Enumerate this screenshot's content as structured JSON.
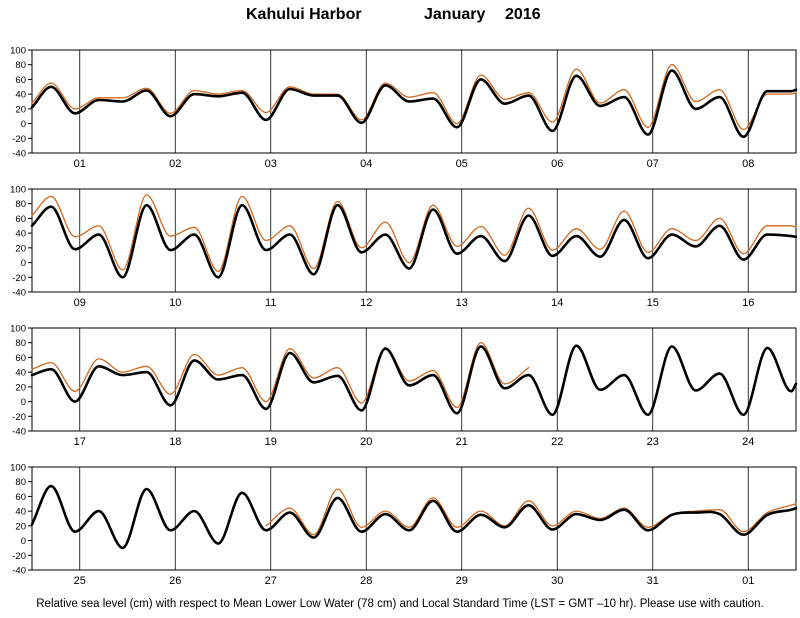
{
  "title": {
    "station": "Kahului Harbor",
    "month": "January",
    "year": "2016"
  },
  "footer": "Relative sea level (cm) with respect to Mean Lower Low Water (78 cm) and Local Standard Time (LST = GMT –10 hr). Please use with caution.",
  "colors": {
    "predicted": "#000000",
    "observed": "#d2691e",
    "grid": "#000000",
    "background": "#ffffff"
  },
  "chart_data": {
    "type": "line",
    "xlabel": "",
    "ylabel": "",
    "ylim": [
      -40,
      100
    ],
    "yticks": [
      -40,
      -20,
      0,
      20,
      40,
      60,
      80,
      100
    ],
    "grid": "vertical day separators",
    "series_styles": [
      {
        "key": "predicted",
        "color": "#000000",
        "weight": "thick"
      },
      {
        "key": "observed",
        "color": "#d2691e",
        "weight": "thin"
      }
    ],
    "panels": [
      {
        "days": [
          "01",
          "02",
          "03",
          "04",
          "05",
          "06",
          "07",
          "08"
        ],
        "predicted": {
          "x": [
            0,
            0.2,
            0.45,
            0.7,
            0.95,
            1.2,
            1.45,
            1.7,
            1.95,
            2.2,
            2.45,
            2.7,
            2.95,
            3.2,
            3.45,
            3.7,
            3.95,
            4.2,
            4.45,
            4.7,
            4.95,
            5.2,
            5.45,
            5.7,
            5.95,
            6.2,
            6.45,
            6.7,
            6.95,
            7.2,
            7.45,
            7.7,
            7.95,
            8.0
          ],
          "y": [
            22,
            50,
            14,
            32,
            30,
            45,
            10,
            40,
            37,
            42,
            5,
            47,
            38,
            38,
            1,
            52,
            30,
            34,
            -5,
            60,
            27,
            38,
            -10,
            65,
            24,
            36,
            -15,
            72,
            20,
            36,
            -18,
            44,
            44,
            46
          ]
        },
        "observed": {
          "x": [
            0,
            0.2,
            0.45,
            0.7,
            0.95,
            1.2,
            1.45,
            1.7,
            1.95,
            2.2,
            2.45,
            2.7,
            2.95,
            3.2,
            3.45,
            3.7,
            3.95,
            4.2,
            4.45,
            4.7,
            4.95,
            5.2,
            5.45,
            5.7,
            5.95,
            6.2,
            6.45,
            6.7,
            6.95,
            7.2,
            7.45,
            7.7,
            7.95,
            8.0
          ],
          "y": [
            28,
            55,
            20,
            35,
            35,
            48,
            14,
            45,
            40,
            45,
            15,
            50,
            40,
            40,
            5,
            55,
            36,
            42,
            0,
            66,
            33,
            42,
            2,
            74,
            28,
            46,
            -5,
            80,
            30,
            46,
            -8,
            40,
            40,
            42
          ]
        }
      },
      {
        "days": [
          "09",
          "10",
          "11",
          "12",
          "13",
          "14",
          "15",
          "16"
        ],
        "predicted": {
          "x": [
            0,
            0.2,
            0.45,
            0.7,
            0.95,
            1.2,
            1.45,
            1.7,
            1.95,
            2.2,
            2.45,
            2.7,
            2.95,
            3.2,
            3.45,
            3.7,
            3.95,
            4.2,
            4.45,
            4.7,
            4.95,
            5.2,
            5.45,
            5.7,
            5.95,
            6.2,
            6.45,
            6.7,
            6.95,
            7.2,
            7.45,
            7.7,
            7.95,
            8.0
          ],
          "y": [
            50,
            76,
            18,
            38,
            -20,
            78,
            17,
            38,
            -20,
            78,
            17,
            38,
            -16,
            78,
            14,
            38,
            -8,
            72,
            12,
            36,
            2,
            64,
            9,
            36,
            8,
            58,
            6,
            38,
            22,
            50,
            4,
            38,
            36,
            35
          ]
        },
        "observed": {
          "x": [
            0,
            0.2,
            0.45,
            0.7,
            0.95,
            1.2,
            1.45,
            1.7,
            1.95,
            2.2,
            2.45,
            2.7,
            2.95,
            3.2,
            3.45,
            3.7,
            3.95,
            4.2,
            4.45,
            4.7,
            4.95,
            5.2,
            5.45,
            5.7,
            5.95,
            6.2,
            6.45,
            6.7,
            6.95,
            7.2,
            7.45,
            7.7,
            7.95,
            8.0
          ],
          "y": [
            64,
            90,
            35,
            50,
            -10,
            92,
            36,
            48,
            -12,
            90,
            30,
            50,
            -8,
            83,
            20,
            55,
            0,
            78,
            22,
            49,
            10,
            74,
            17,
            46,
            18,
            70,
            14,
            46,
            30,
            60,
            12,
            50,
            50,
            48
          ]
        }
      },
      {
        "days": [
          "17",
          "18",
          "19",
          "20",
          "21",
          "22",
          "23",
          "24"
        ],
        "predicted": {
          "x": [
            0,
            0.2,
            0.45,
            0.7,
            0.95,
            1.2,
            1.45,
            1.7,
            1.95,
            2.2,
            2.45,
            2.7,
            2.95,
            3.2,
            3.45,
            3.7,
            3.95,
            4.2,
            4.45,
            4.7,
            4.95,
            5.2,
            5.45,
            5.7,
            5.95,
            6.2,
            6.45,
            6.7,
            6.95,
            7.2,
            7.45,
            7.7,
            7.95,
            8.0
          ],
          "y": [
            36,
            44,
            0,
            48,
            36,
            40,
            -5,
            56,
            30,
            36,
            -10,
            66,
            26,
            35,
            -12,
            72,
            22,
            36,
            -16,
            75,
            18,
            36,
            -18,
            76,
            16,
            36,
            -18,
            75,
            15,
            38,
            -18,
            73,
            14,
            24
          ]
        },
        "observed": {
          "x": [
            0,
            0.2,
            0.45,
            0.7,
            0.95,
            1.2,
            1.45,
            1.7,
            1.95,
            2.2,
            2.45,
            2.7,
            2.95,
            3.2,
            3.45,
            3.7,
            3.95,
            4.2,
            4.45,
            4.7,
            4.95,
            5.2,
            5.45,
            5.7,
            5.95,
            6.2,
            6.45
          ],
          "y": [
            44,
            53,
            14,
            58,
            40,
            48,
            10,
            64,
            36,
            46,
            0,
            72,
            32,
            46,
            -2,
            73,
            28,
            42,
            -8,
            80,
            24,
            46,
            null,
            null,
            null,
            null,
            null
          ]
        }
      },
      {
        "days": [
          "25",
          "26",
          "27",
          "28",
          "29",
          "30",
          "31",
          "01"
        ],
        "predicted": {
          "x": [
            0,
            0.2,
            0.45,
            0.7,
            0.95,
            1.2,
            1.45,
            1.7,
            1.95,
            2.2,
            2.45,
            2.7,
            2.95,
            3.2,
            3.45,
            3.7,
            3.95,
            4.2,
            4.45,
            4.7,
            4.95,
            5.2,
            5.45,
            5.7,
            5.95,
            6.2,
            6.45,
            6.7,
            6.95,
            7.2,
            7.45,
            7.7,
            7.95,
            8.0
          ],
          "y": [
            22,
            74,
            12,
            40,
            -10,
            70,
            14,
            40,
            -4,
            65,
            14,
            38,
            4,
            58,
            12,
            36,
            14,
            54,
            12,
            35,
            18,
            48,
            15,
            36,
            28,
            42,
            14,
            35,
            38,
            36,
            8,
            35,
            42,
            44
          ]
        },
        "observed": {
          "x": [
            2.45,
            2.7,
            2.95,
            3.2,
            3.45,
            3.7,
            3.95,
            4.2,
            4.45,
            4.7,
            4.95,
            5.2,
            5.45,
            5.7,
            5.95,
            6.2,
            6.45,
            6.7,
            6.95,
            7.2,
            7.45,
            7.7,
            7.95,
            8.0
          ],
          "y": [
            20,
            44,
            8,
            70,
            18,
            40,
            18,
            58,
            18,
            40,
            20,
            54,
            20,
            40,
            30,
            44,
            18,
            36,
            40,
            42,
            12,
            38,
            48,
            50
          ]
        }
      }
    ]
  }
}
